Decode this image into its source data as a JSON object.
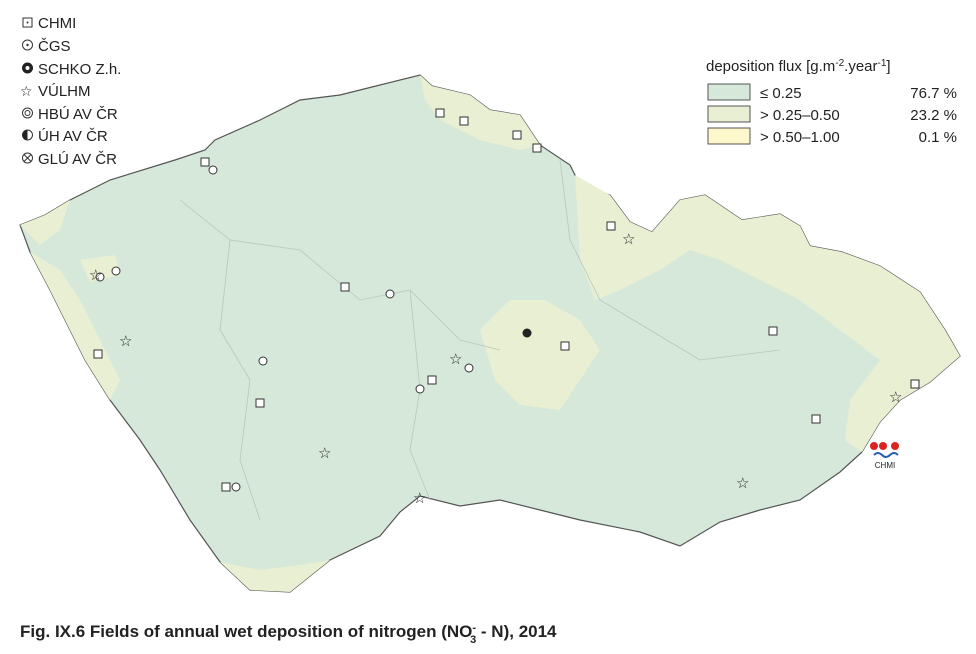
{
  "stations_legend": [
    "CHMI",
    "ČGS",
    "SCHKO Z.h.",
    "VÚLHM",
    "HBÚ AV ČR",
    "ÚH AV ČR",
    "GLÚ AV ČR"
  ],
  "flux_legend": {
    "title": [
      "deposition flux [g.m",
      "-2",
      ".year",
      "-1",
      "]"
    ],
    "items": [
      {
        "label": "≤ 0.25",
        "share": "76.7 %"
      },
      {
        "label": "> 0.25–0.50",
        "share": "23.2 %"
      },
      {
        "label": "> 0.50–1.00",
        "share": "0.1 %"
      }
    ]
  },
  "logo": "CHMI",
  "caption": [
    "Fig. IX.6  Fields of annual wet deposition of nitrogen (NO",
    "-",
    "3",
    " - N), 2014"
  ]
}
